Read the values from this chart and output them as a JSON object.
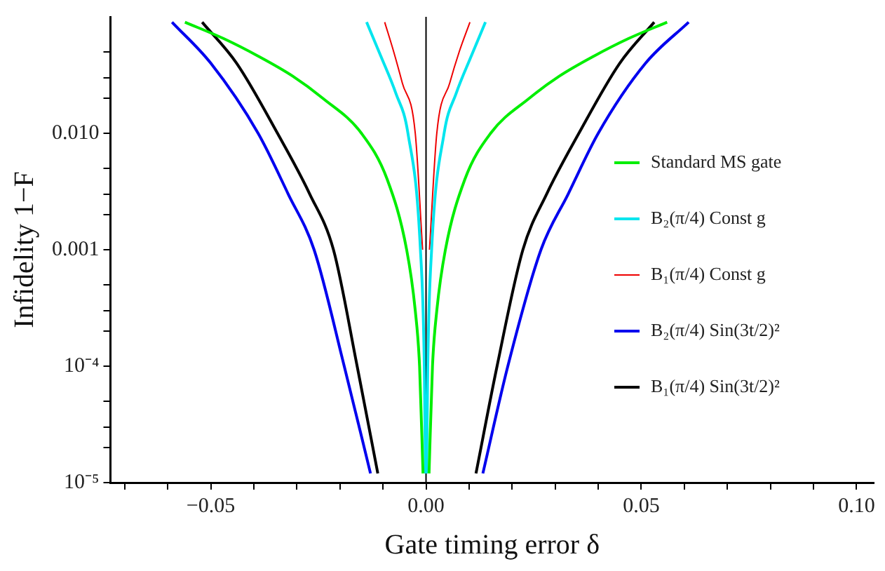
{
  "chart_data": {
    "type": "line",
    "xlabel": "Gate timing error δ",
    "ylabel": "Infidelity 1−F",
    "log": "y",
    "grid": false,
    "legend": "right",
    "marker": "none",
    "line_style": "solid",
    "xlim": [
      -0.0733,
      0.104
    ],
    "ylim": [
      1e-05,
      0.1
    ],
    "xticks": [
      {
        "value": -0.07,
        "label": null
      },
      {
        "value": -0.06,
        "label": null
      },
      {
        "value": -0.05,
        "label": "−0.05"
      },
      {
        "value": -0.04,
        "label": null
      },
      {
        "value": -0.03,
        "label": null
      },
      {
        "value": -0.02,
        "label": null
      },
      {
        "value": -0.01,
        "label": null
      },
      {
        "value": 0,
        "label": "0.00"
      },
      {
        "value": 0.01,
        "label": null
      },
      {
        "value": 0.02,
        "label": null
      },
      {
        "value": 0.03,
        "label": null
      },
      {
        "value": 0.04,
        "label": null
      },
      {
        "value": 0.05,
        "label": "0.05"
      },
      {
        "value": 0.06,
        "label": null
      },
      {
        "value": 0.07,
        "label": null
      },
      {
        "value": 0.08,
        "label": null
      },
      {
        "value": 0.09,
        "label": null
      },
      {
        "value": 0.1,
        "label": "0.10"
      }
    ],
    "yticks": [
      {
        "value": 1e-05,
        "label": "10⁻⁵"
      },
      {
        "value": 2e-05,
        "label": null
      },
      {
        "value": 3e-05,
        "label": null
      },
      {
        "value": 5e-05,
        "label": null
      },
      {
        "value": 0.0001,
        "label": "10⁻⁴"
      },
      {
        "value": 0.0002,
        "label": null
      },
      {
        "value": 0.0003,
        "label": null
      },
      {
        "value": 0.0005,
        "label": null
      },
      {
        "value": 0.001,
        "label": "0.001"
      },
      {
        "value": 0.002,
        "label": null
      },
      {
        "value": 0.003,
        "label": null
      },
      {
        "value": 0.005,
        "label": null
      },
      {
        "value": 0.01,
        "label": "0.010"
      },
      {
        "value": 0.02,
        "label": null
      },
      {
        "value": 0.03,
        "label": null
      },
      {
        "value": 0.05,
        "label": null
      }
    ],
    "ref_lines": [
      {
        "axis": "x",
        "value": 0,
        "color": "#000000"
      }
    ],
    "series": [
      {
        "name": "Standard MS gate",
        "color": "#00ee00",
        "x": [
          -0.056,
          -0.047,
          -0.039,
          -0.031,
          -0.024,
          -0.015,
          -0.009,
          -0.0045,
          -0.0025,
          -0.0015,
          -0.0007,
          0,
          0.0007,
          0.0015,
          0.0025,
          0.0045,
          0.009,
          0.015,
          0.024,
          0.031,
          0.039,
          0.047,
          0.056
        ],
        "values": [
          0.09,
          0.065,
          0.046,
          0.031,
          0.02,
          0.01,
          0.004,
          0.001,
          0.0003,
          0.0001,
          1.2e-05,
          null,
          1.2e-05,
          0.0001,
          0.0003,
          0.001,
          0.004,
          0.01,
          0.02,
          0.031,
          0.046,
          0.065,
          0.09
        ]
      },
      {
        "name": "B₂(π/4) Const g",
        "color": "#00e5ee",
        "x": [
          -0.0138,
          -0.0105,
          -0.007,
          -0.0042,
          -0.0013,
          -0.0004,
          -0.00014,
          0,
          0.00014,
          0.0004,
          0.0013,
          0.0042,
          0.007,
          0.0105,
          0.0138
        ],
        "values": [
          0.09,
          0.046,
          0.022,
          0.01,
          0.001,
          0.0001,
          1.2e-05,
          null,
          1.2e-05,
          0.0001,
          0.001,
          0.01,
          0.022,
          0.046,
          0.09
        ]
      },
      {
        "name": "B₁(π/4) Const g",
        "color": "#ee0000",
        "x": [
          -0.0096,
          -0.0075,
          -0.0055,
          -0.0025,
          -0.0008,
          0,
          0.0008,
          0.0025,
          0.0055,
          0.0077,
          0.0102
        ],
        "values": [
          0.09,
          0.05,
          0.027,
          0.01,
          0.001,
          null,
          0.001,
          0.01,
          0.027,
          0.05,
          0.09
        ]
      },
      {
        "name": "B₂(π/4) Sin(3t/2)²",
        "color": "#0000ee",
        "x": [
          -0.059,
          -0.05,
          -0.039,
          -0.032,
          -0.026,
          -0.019,
          -0.0129,
          0,
          0.0132,
          0.019,
          0.0267,
          0.033,
          0.04,
          0.051,
          0.061
        ],
        "values": [
          0.09,
          0.04,
          0.01,
          0.003,
          0.001,
          0.0001,
          1.2e-05,
          null,
          1.2e-05,
          0.0001,
          0.001,
          0.003,
          0.01,
          0.04,
          0.09
        ]
      },
      {
        "name": "B₁(π/4) Sin(3t/2)²",
        "color": "#000000",
        "x": [
          -0.052,
          -0.044,
          -0.0345,
          -0.027,
          -0.0215,
          -0.016,
          -0.0112,
          0,
          0.0116,
          0.0165,
          0.0225,
          0.028,
          0.0355,
          0.045,
          0.053
        ],
        "values": [
          0.09,
          0.04,
          0.01,
          0.003,
          0.001,
          0.0001,
          1.2e-05,
          null,
          1.2e-05,
          0.0001,
          0.001,
          0.003,
          0.01,
          0.04,
          0.09
        ]
      }
    ]
  }
}
